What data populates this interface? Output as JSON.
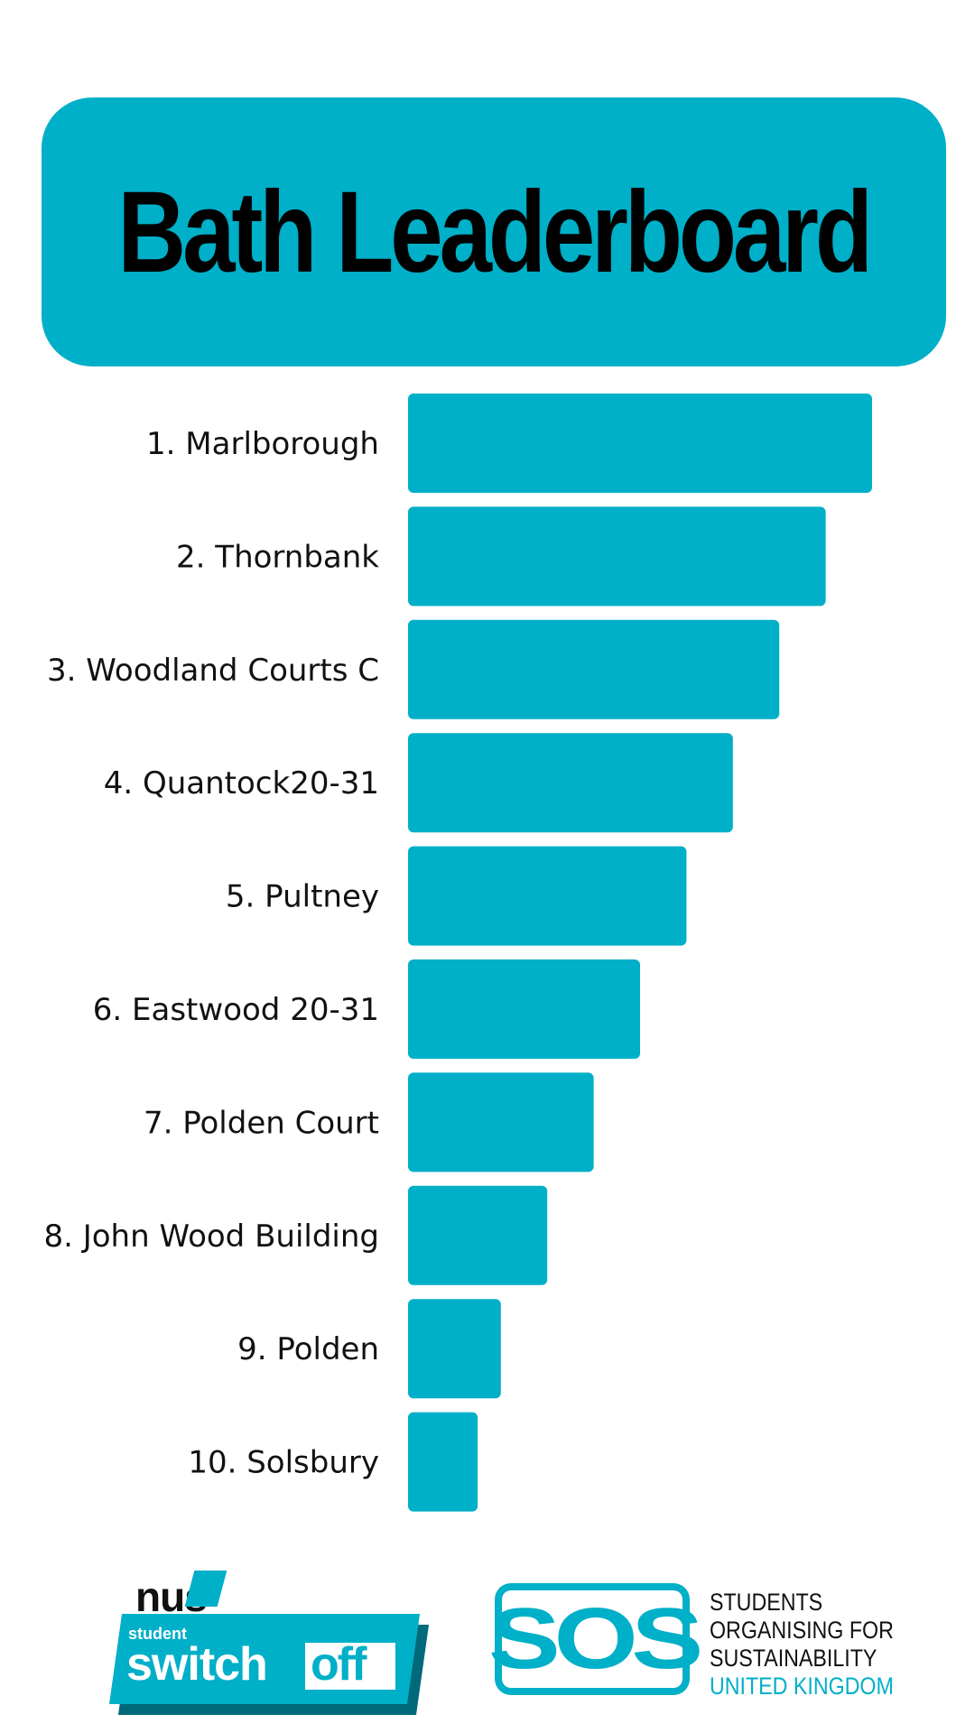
{
  "colors": {
    "accent": "#00afc8",
    "text": "#111111",
    "background": "#ffffff"
  },
  "header": {
    "title": "Bath Leaderboard"
  },
  "chart_data": {
    "type": "bar",
    "orientation": "horizontal",
    "title": "Bath Leaderboard",
    "categories": [
      "1. Marlborough",
      "2. Thornbank",
      "3. Woodland Courts C",
      "4. Quantock20-31",
      "5. Pultney",
      "6. Eastwood 20-31",
      "7. Polden Court",
      "8. John Wood Building",
      "9. Polden",
      "10. Solsbury"
    ],
    "values": [
      10,
      9,
      8,
      7,
      6,
      5,
      4,
      3,
      2,
      1.5
    ],
    "xlim": [
      0,
      10
    ],
    "grid": false,
    "legend": "none"
  },
  "logos": {
    "nus": "nus",
    "student": "student",
    "switch": "switch",
    "off": "off",
    "sos": "SOS",
    "sos_lines": [
      "STUDENTS",
      "ORGANISING FOR",
      "SUSTAINABILITY",
      "UNITED KINGDOM"
    ],
    "nus_icon": "nus-switch-off-logo",
    "sos_icon": "sos-logo"
  }
}
